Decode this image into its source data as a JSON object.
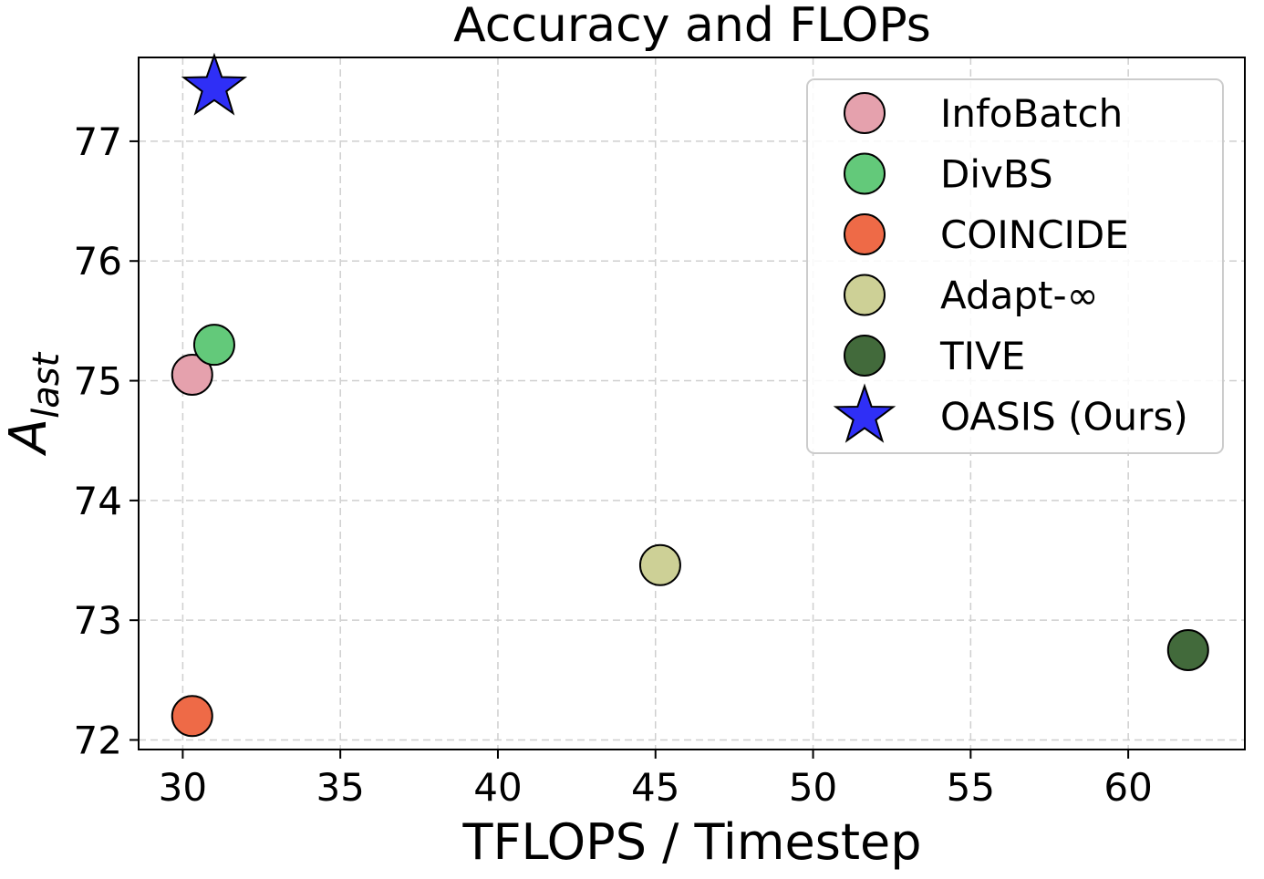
{
  "chart_data": {
    "type": "scatter",
    "title": "Accuracy and FLOPs",
    "xlabel": "TFLOPS / Timestep",
    "ylabel_main": "A",
    "ylabel_sub": "last",
    "xlim": [
      28.6,
      63.7
    ],
    "ylim": [
      71.92,
      77.7
    ],
    "xticks": [
      30,
      35,
      40,
      45,
      50,
      55,
      60
    ],
    "yticks": [
      72,
      73,
      74,
      75,
      76,
      77
    ],
    "grid": true,
    "legend_position": "top-right",
    "series": [
      {
        "name": "InfoBatch",
        "x": 30.3,
        "y": 75.05,
        "marker": "circle",
        "color": "#e5a1ad"
      },
      {
        "name": "DivBS",
        "x": 31.0,
        "y": 75.3,
        "marker": "circle",
        "color": "#63c97a"
      },
      {
        "name": "COINCIDE",
        "x": 30.3,
        "y": 72.2,
        "marker": "circle",
        "color": "#ee6a47"
      },
      {
        "name": "Adapt-∞",
        "x": 45.15,
        "y": 73.46,
        "marker": "circle",
        "color": "#cdd096"
      },
      {
        "name": "TIVE",
        "x": 61.9,
        "y": 72.75,
        "marker": "circle",
        "color": "#426a3b"
      },
      {
        "name": "OASIS (Ours)",
        "x": 31.0,
        "y": 77.45,
        "marker": "star",
        "color": "#2f2ff6"
      }
    ]
  }
}
